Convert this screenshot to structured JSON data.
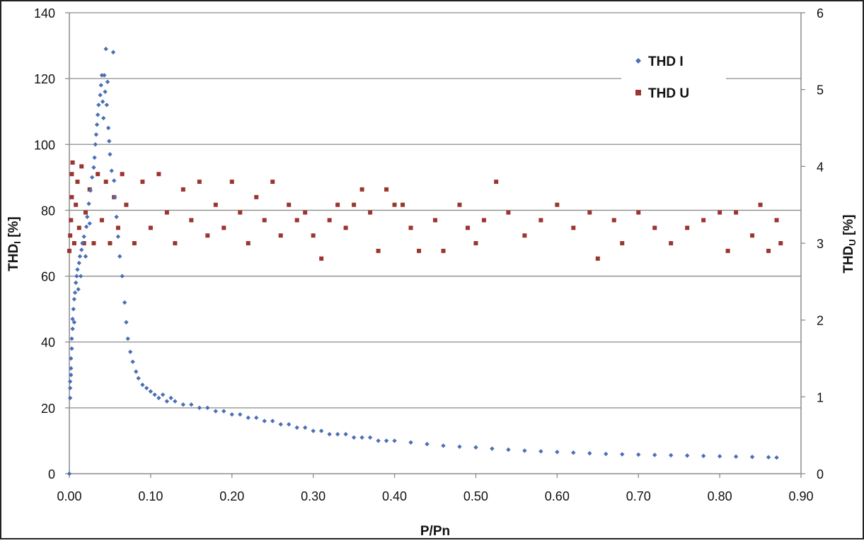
{
  "chart_data": {
    "type": "scatter",
    "xlabel": "P/Pn",
    "ylabel_left": {
      "base": "THD",
      "sub": "I",
      "tail": " [%]"
    },
    "ylabel_right": {
      "base": "THD",
      "sub": "U",
      "tail": " [%]"
    },
    "x_ticks": [
      "0.00",
      "0.10",
      "0.20",
      "0.30",
      "0.40",
      "0.50",
      "0.60",
      "0.70",
      "0.80",
      "0.90"
    ],
    "y_left_ticks": [
      "0",
      "20",
      "40",
      "60",
      "80",
      "100",
      "120",
      "140"
    ],
    "y_right_ticks": [
      "0",
      "1",
      "2",
      "3",
      "4",
      "5",
      "6"
    ],
    "xlim": [
      0,
      0.9
    ],
    "ylim_left": [
      0,
      140
    ],
    "ylim_right": [
      0,
      6
    ],
    "grid": "horizontal",
    "legend_position": "top-right",
    "colors": {
      "thd_i": "#4a6fb5",
      "thd_u": "#9c3530",
      "grid": "#8c8c8c",
      "axis": "#8c8c8c"
    },
    "series": [
      {
        "name": "THD I",
        "axis": "left",
        "marker": "diamond",
        "points": [
          [
            0.0,
            0
          ],
          [
            0.001,
            23
          ],
          [
            0.001,
            26
          ],
          [
            0.001,
            28
          ],
          [
            0.002,
            30
          ],
          [
            0.002,
            32
          ],
          [
            0.002,
            35
          ],
          [
            0.003,
            38
          ],
          [
            0.003,
            41
          ],
          [
            0.004,
            44
          ],
          [
            0.004,
            47
          ],
          [
            0.005,
            50
          ],
          [
            0.006,
            46
          ],
          [
            0.006,
            53
          ],
          [
            0.007,
            55
          ],
          [
            0.008,
            58
          ],
          [
            0.009,
            60
          ],
          [
            0.01,
            62
          ],
          [
            0.011,
            56
          ],
          [
            0.012,
            64
          ],
          [
            0.013,
            66
          ],
          [
            0.014,
            60
          ],
          [
            0.015,
            68
          ],
          [
            0.016,
            70
          ],
          [
            0.018,
            72
          ],
          [
            0.02,
            66
          ],
          [
            0.021,
            75
          ],
          [
            0.022,
            78
          ],
          [
            0.024,
            82
          ],
          [
            0.025,
            76
          ],
          [
            0.026,
            86
          ],
          [
            0.028,
            90
          ],
          [
            0.03,
            93
          ],
          [
            0.031,
            96
          ],
          [
            0.032,
            100
          ],
          [
            0.033,
            103
          ],
          [
            0.034,
            106
          ],
          [
            0.035,
            109
          ],
          [
            0.036,
            112
          ],
          [
            0.038,
            115
          ],
          [
            0.039,
            118
          ],
          [
            0.04,
            121
          ],
          [
            0.041,
            113
          ],
          [
            0.042,
            108
          ],
          [
            0.043,
            121
          ],
          [
            0.044,
            116
          ],
          [
            0.045,
            129
          ],
          [
            0.046,
            112
          ],
          [
            0.047,
            119
          ],
          [
            0.048,
            105
          ],
          [
            0.049,
            101
          ],
          [
            0.05,
            97
          ],
          [
            0.052,
            92
          ],
          [
            0.054,
            128
          ],
          [
            0.055,
            89
          ],
          [
            0.056,
            84
          ],
          [
            0.058,
            78
          ],
          [
            0.06,
            72
          ],
          [
            0.062,
            66
          ],
          [
            0.065,
            60
          ],
          [
            0.068,
            52
          ],
          [
            0.07,
            46
          ],
          [
            0.072,
            41
          ],
          [
            0.075,
            37
          ],
          [
            0.078,
            34
          ],
          [
            0.082,
            31
          ],
          [
            0.085,
            29
          ],
          [
            0.09,
            27
          ],
          [
            0.095,
            26
          ],
          [
            0.1,
            25
          ],
          [
            0.105,
            24
          ],
          [
            0.11,
            23
          ],
          [
            0.115,
            24
          ],
          [
            0.12,
            22
          ],
          [
            0.125,
            23
          ],
          [
            0.13,
            22
          ],
          [
            0.14,
            21
          ],
          [
            0.15,
            21
          ],
          [
            0.16,
            20
          ],
          [
            0.17,
            20
          ],
          [
            0.18,
            19
          ],
          [
            0.19,
            19
          ],
          [
            0.2,
            18
          ],
          [
            0.21,
            18
          ],
          [
            0.22,
            17
          ],
          [
            0.23,
            17
          ],
          [
            0.24,
            16
          ],
          [
            0.25,
            16
          ],
          [
            0.26,
            15
          ],
          [
            0.27,
            15
          ],
          [
            0.28,
            14
          ],
          [
            0.29,
            14
          ],
          [
            0.3,
            13
          ],
          [
            0.31,
            13
          ],
          [
            0.32,
            12
          ],
          [
            0.33,
            12
          ],
          [
            0.34,
            12
          ],
          [
            0.35,
            11
          ],
          [
            0.36,
            11
          ],
          [
            0.37,
            11
          ],
          [
            0.38,
            10
          ],
          [
            0.39,
            10
          ],
          [
            0.4,
            10
          ],
          [
            0.42,
            9.5
          ],
          [
            0.44,
            9
          ],
          [
            0.46,
            8.5
          ],
          [
            0.48,
            8.2
          ],
          [
            0.5,
            8
          ],
          [
            0.52,
            7.6
          ],
          [
            0.54,
            7.3
          ],
          [
            0.56,
            7
          ],
          [
            0.58,
            6.8
          ],
          [
            0.6,
            6.6
          ],
          [
            0.62,
            6.4
          ],
          [
            0.64,
            6.2
          ],
          [
            0.66,
            6
          ],
          [
            0.68,
            5.9
          ],
          [
            0.7,
            5.8
          ],
          [
            0.72,
            5.7
          ],
          [
            0.74,
            5.6
          ],
          [
            0.76,
            5.5
          ],
          [
            0.78,
            5.4
          ],
          [
            0.8,
            5.3
          ],
          [
            0.82,
            5.2
          ],
          [
            0.84,
            5.1
          ],
          [
            0.86,
            5
          ],
          [
            0.87,
            4.9
          ]
        ]
      },
      {
        "name": "THD U",
        "axis": "right",
        "marker": "square",
        "points": [
          [
            0.0,
            2.9
          ],
          [
            0.001,
            3.1
          ],
          [
            0.002,
            3.3
          ],
          [
            0.003,
            3.6
          ],
          [
            0.003,
            3.9
          ],
          [
            0.004,
            4.05
          ],
          [
            0.006,
            3.0
          ],
          [
            0.008,
            3.5
          ],
          [
            0.01,
            3.8
          ],
          [
            0.012,
            3.2
          ],
          [
            0.015,
            4.0
          ],
          [
            0.018,
            3.0
          ],
          [
            0.02,
            3.4
          ],
          [
            0.025,
            3.7
          ],
          [
            0.03,
            3.0
          ],
          [
            0.035,
            3.9
          ],
          [
            0.04,
            3.3
          ],
          [
            0.045,
            3.8
          ],
          [
            0.05,
            3.0
          ],
          [
            0.055,
            3.6
          ],
          [
            0.06,
            3.2
          ],
          [
            0.065,
            3.9
          ],
          [
            0.07,
            3.5
          ],
          [
            0.08,
            3.0
          ],
          [
            0.09,
            3.8
          ],
          [
            0.1,
            3.2
          ],
          [
            0.11,
            3.9
          ],
          [
            0.12,
            3.4
          ],
          [
            0.13,
            3.0
          ],
          [
            0.14,
            3.7
          ],
          [
            0.15,
            3.3
          ],
          [
            0.16,
            3.8
          ],
          [
            0.17,
            3.1
          ],
          [
            0.18,
            3.5
          ],
          [
            0.19,
            3.2
          ],
          [
            0.2,
            3.8
          ],
          [
            0.21,
            3.4
          ],
          [
            0.22,
            3.0
          ],
          [
            0.23,
            3.6
          ],
          [
            0.24,
            3.3
          ],
          [
            0.25,
            3.8
          ],
          [
            0.26,
            3.1
          ],
          [
            0.27,
            3.5
          ],
          [
            0.28,
            3.3
          ],
          [
            0.29,
            3.4
          ],
          [
            0.3,
            3.1
          ],
          [
            0.31,
            2.8
          ],
          [
            0.32,
            3.3
          ],
          [
            0.33,
            3.5
          ],
          [
            0.34,
            3.2
          ],
          [
            0.35,
            3.5
          ],
          [
            0.36,
            3.7
          ],
          [
            0.37,
            3.4
          ],
          [
            0.38,
            2.9
          ],
          [
            0.39,
            3.7
          ],
          [
            0.4,
            3.5
          ],
          [
            0.41,
            3.5
          ],
          [
            0.42,
            3.2
          ],
          [
            0.43,
            2.9
          ],
          [
            0.45,
            3.3
          ],
          [
            0.46,
            2.9
          ],
          [
            0.48,
            3.5
          ],
          [
            0.49,
            3.2
          ],
          [
            0.5,
            3.0
          ],
          [
            0.51,
            3.3
          ],
          [
            0.525,
            3.8
          ],
          [
            0.54,
            3.4
          ],
          [
            0.56,
            3.1
          ],
          [
            0.58,
            3.3
          ],
          [
            0.6,
            3.5
          ],
          [
            0.62,
            3.2
          ],
          [
            0.64,
            3.4
          ],
          [
            0.65,
            2.8
          ],
          [
            0.67,
            3.3
          ],
          [
            0.68,
            3.0
          ],
          [
            0.7,
            3.4
          ],
          [
            0.72,
            3.2
          ],
          [
            0.74,
            3.0
          ],
          [
            0.76,
            3.2
          ],
          [
            0.78,
            3.3
          ],
          [
            0.8,
            3.4
          ],
          [
            0.81,
            2.9
          ],
          [
            0.82,
            3.4
          ],
          [
            0.84,
            3.1
          ],
          [
            0.85,
            3.5
          ],
          [
            0.86,
            2.9
          ],
          [
            0.87,
            3.3
          ],
          [
            0.875,
            3.0
          ]
        ]
      }
    ]
  }
}
